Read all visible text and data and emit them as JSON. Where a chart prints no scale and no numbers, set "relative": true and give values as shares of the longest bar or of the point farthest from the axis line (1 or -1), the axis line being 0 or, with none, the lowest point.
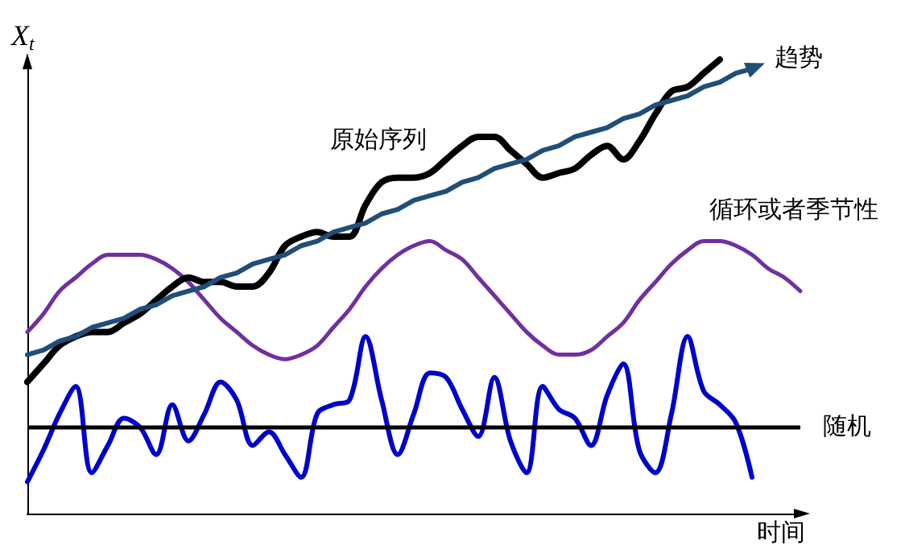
{
  "chart_data": {
    "type": "line",
    "relative": true,
    "ylabel": "X$_{t}$",
    "xlabel": "时间",
    "grid": false,
    "legend": false,
    "categories": [
      null,
      null,
      null,
      null,
      null,
      null,
      null,
      null,
      null,
      null,
      null,
      null,
      null,
      null,
      null,
      null,
      null,
      null,
      null,
      null,
      null,
      null,
      null,
      null,
      null,
      null,
      null,
      null,
      null,
      null,
      null,
      null,
      null,
      null,
      null,
      null,
      null,
      null,
      null,
      null,
      null,
      null,
      null,
      null,
      null,
      null,
      null,
      null,
      null
    ],
    "series": [
      {
        "name": "循环或者季节性",
        "color": "#7030a0",
        "values": [
          0.4,
          0.44,
          0.49,
          0.52,
          0.55,
          0.57,
          0.57,
          0.57,
          0.56,
          0.54,
          0.51,
          0.47,
          0.43,
          0.4,
          0.37,
          0.35,
          0.34,
          0.35,
          0.37,
          0.41,
          0.45,
          0.5,
          0.54,
          0.57,
          0.59,
          0.6,
          0.58,
          0.56,
          0.52,
          0.48,
          0.44,
          0.4,
          0.37,
          0.35,
          0.35,
          0.36,
          0.39,
          0.42,
          0.47,
          0.51,
          0.55,
          0.58,
          0.6,
          0.6,
          0.59,
          0.57,
          0.54,
          0.52,
          0.49
        ]
      },
      {
        "color": "#0000cc",
        "values": [
          0.07,
          0.14,
          0.22,
          0.28,
          0.09,
          0.15,
          0.21,
          0.19,
          0.13,
          0.24,
          0.16,
          0.22,
          0.29,
          0.25,
          0.15,
          0.18,
          0.13,
          0.08,
          0.22,
          0.24,
          0.25,
          0.39,
          0.25,
          0.13,
          0.22,
          0.31,
          0.3,
          0.23,
          0.17,
          0.3,
          0.16,
          0.09,
          0.28,
          0.23,
          0.21,
          0.15,
          0.26,
          0.33,
          0.14,
          0.09,
          0.22,
          0.39,
          0.27,
          0.24,
          0.2,
          0.08,
          null,
          null,
          null
        ]
      },
      {
        "name": "原始序列",
        "color": "#000000",
        "values": [
          0.29,
          0.33,
          0.37,
          0.39,
          0.4,
          0.4,
          0.42,
          0.44,
          0.47,
          0.5,
          0.52,
          0.51,
          0.51,
          0.5,
          0.5,
          0.53,
          0.59,
          0.61,
          0.62,
          0.61,
          0.61,
          0.68,
          0.73,
          0.74,
          0.74,
          0.75,
          0.78,
          0.81,
          0.83,
          0.83,
          0.8,
          0.77,
          0.74,
          0.75,
          0.76,
          0.79,
          0.81,
          0.78,
          0.82,
          0.88,
          0.93,
          0.94,
          0.97,
          1.0,
          null,
          null,
          null,
          null,
          null
        ]
      },
      {
        "name": "趋势",
        "color": "#1f4e79",
        "values": [
          0.35,
          0.36,
          0.38,
          0.39,
          0.41,
          0.42,
          0.43,
          0.45,
          0.46,
          0.48,
          0.49,
          0.5,
          0.52,
          0.53,
          0.55,
          0.56,
          0.57,
          0.59,
          0.6,
          0.62,
          0.63,
          0.64,
          0.66,
          0.67,
          0.69,
          0.7,
          0.71,
          0.73,
          0.74,
          0.76,
          0.77,
          0.78,
          0.8,
          0.81,
          0.83,
          0.84,
          0.85,
          0.87,
          0.88,
          0.9,
          0.91,
          0.92,
          0.94,
          0.95,
          0.97,
          0.98,
          null,
          null,
          null
        ]
      }
    ],
    "ref_lines": [
      {
        "axis": "y",
        "value": 0.19,
        "label": "随机",
        "color": "#000000"
      }
    ]
  }
}
